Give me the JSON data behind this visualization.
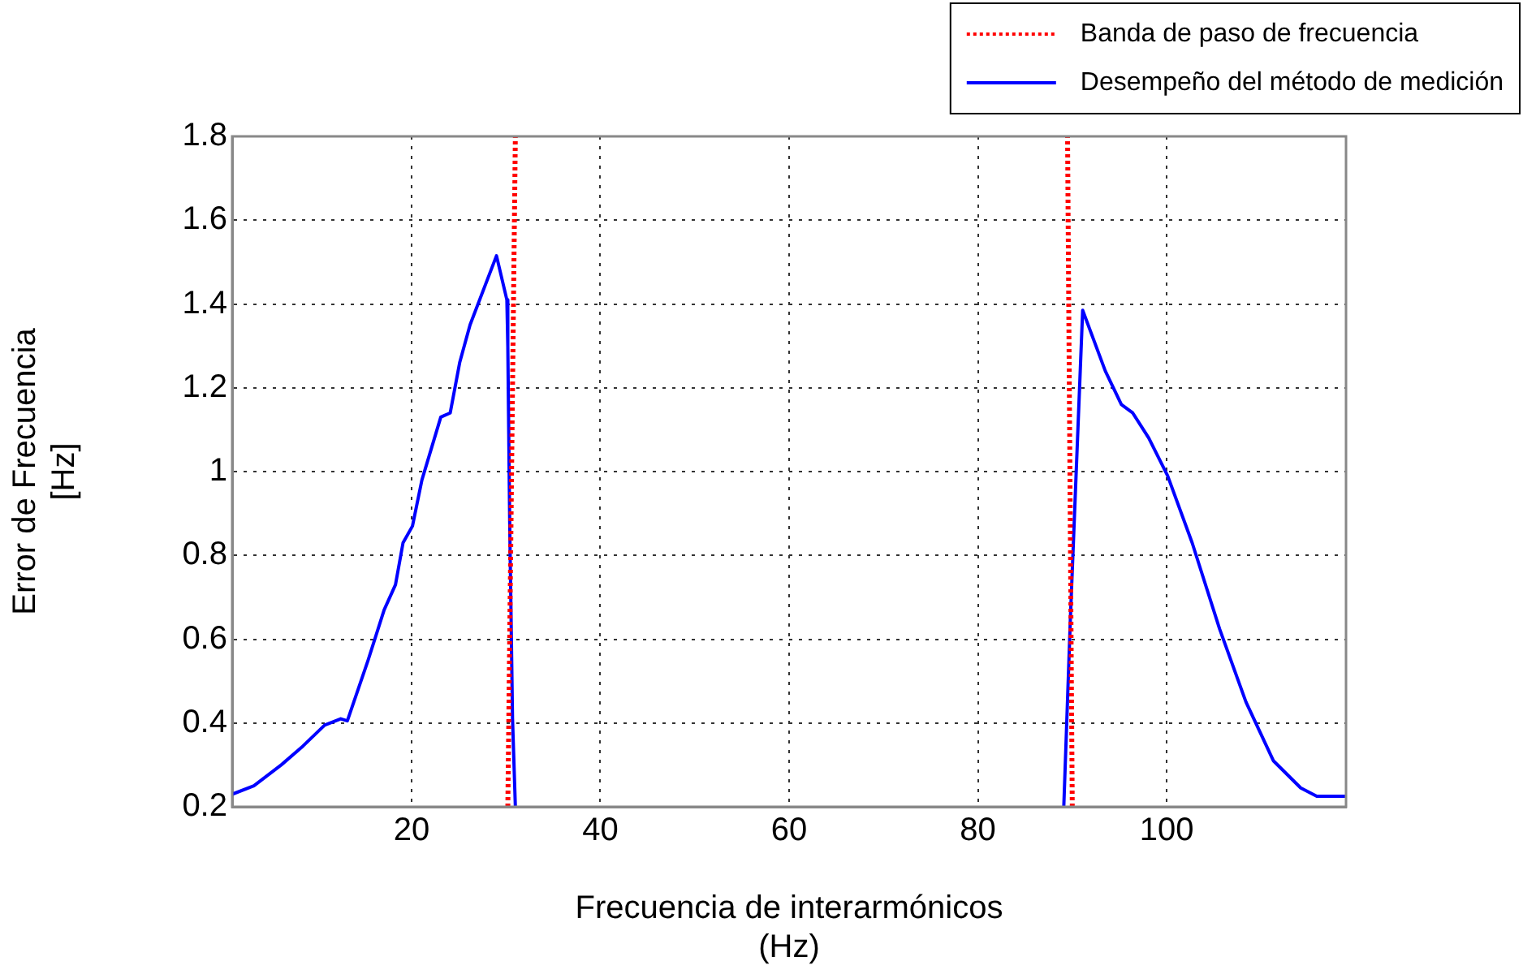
{
  "chart_data": {
    "type": "line",
    "xlabel": "Frecuencia de interarmónicos\n(Hz)",
    "ylabel": "Error de Frecuencia\n[Hz]",
    "xlim": [
      1,
      119
    ],
    "xticks": [
      20,
      40,
      60,
      80,
      100
    ],
    "ylim": [
      0.2,
      1.8
    ],
    "yticks": [
      0.2,
      0.4,
      0.6,
      0.8,
      1,
      1.2,
      1.4,
      1.6,
      1.8
    ],
    "grid": true,
    "legend": "top right",
    "marker": "none",
    "series": [
      {
        "name": "Banda de paso de frecuencia",
        "color": "#ff0000",
        "line_style": "dotted",
        "x": [
          30.2,
          31,
          null,
          90,
          89.5
        ],
        "values": [
          0.2,
          1.8,
          null,
          0.2,
          1.8
        ]
      },
      {
        "name": "Desempeño del método de medición",
        "color": "#0000ff",
        "line_style": "solid",
        "x": [
          1,
          3.3,
          6.2,
          8.5,
          10.8,
          12.5,
          13.2,
          15.4,
          17.1,
          18.3,
          19.1,
          20.1,
          21.1,
          23.1,
          24.1,
          25.1,
          26.2,
          29,
          30.1,
          30.2,
          30.4,
          30.7,
          31,
          60,
          89.1,
          89.8,
          90.4,
          91.1,
          93.5,
          95.2,
          96.4,
          98.1,
          100.1,
          102.7,
          105.6,
          108.4,
          111.3,
          114.2,
          115.9,
          119
        ],
        "values": [
          0.23,
          0.25,
          0.3,
          0.345,
          0.395,
          0.41,
          0.405,
          0.55,
          0.67,
          0.73,
          0.83,
          0.87,
          0.98,
          1.13,
          1.14,
          1.26,
          1.35,
          1.515,
          1.41,
          1.3,
          0.88,
          0.41,
          0.2,
          null,
          0.2,
          0.65,
          0.99,
          1.385,
          1.24,
          1.16,
          1.14,
          1.08,
          0.99,
          0.83,
          0.625,
          0.45,
          0.31,
          0.245,
          0.225,
          0.225
        ]
      }
    ]
  }
}
